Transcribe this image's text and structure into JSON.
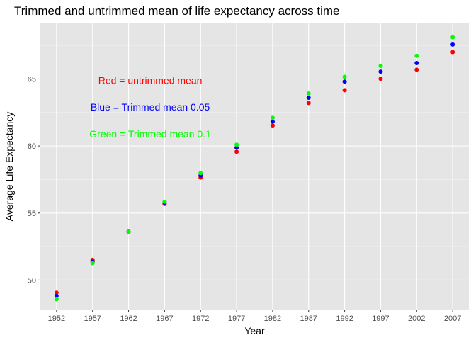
{
  "chart_data": {
    "type": "scatter",
    "title": "Trimmed and untrimmed mean of life expectancy across time",
    "xlabel": "Year",
    "ylabel": "Average Life Expectancy",
    "x": [
      1952,
      1957,
      1962,
      1967,
      1972,
      1977,
      1982,
      1987,
      1992,
      1997,
      2002,
      2007
    ],
    "xlim": [
      1949.75,
      2009.25
    ],
    "ylim": [
      47.75,
      69.2
    ],
    "xticks": [
      "1952",
      "1957",
      "1962",
      "1967",
      "1972",
      "1977",
      "1982",
      "1987",
      "1992",
      "1997",
      "2002",
      "2007"
    ],
    "yticks": [
      50,
      55,
      60,
      65
    ],
    "grid": true,
    "series": [
      {
        "color": "#ff0000",
        "values": [
          49.06,
          51.51,
          53.61,
          55.68,
          57.65,
          59.57,
          61.53,
          63.21,
          64.16,
          65.01,
          65.69,
          67.01
        ]
      },
      {
        "color": "#0000ff",
        "values": [
          48.81,
          51.37,
          53.61,
          55.78,
          57.8,
          59.88,
          61.82,
          63.6,
          64.8,
          65.55,
          66.19,
          67.57
        ]
      },
      {
        "color": "#00ff00",
        "values": [
          48.57,
          51.26,
          53.61,
          55.84,
          57.98,
          60.1,
          62.11,
          63.92,
          65.16,
          65.98,
          66.73,
          68.11
        ]
      }
    ],
    "annotations": [
      {
        "text": "Red = untrimmed mean",
        "x": 1965,
        "y": 64.9,
        "color": "#ff0000"
      },
      {
        "text": "Blue = Trimmed mean 0.05",
        "x": 1965,
        "y": 62.9,
        "color": "#0000ff"
      },
      {
        "text": "Green = Trimmed mean 0.1",
        "x": 1965,
        "y": 60.9,
        "color": "#00ff00"
      }
    ]
  }
}
